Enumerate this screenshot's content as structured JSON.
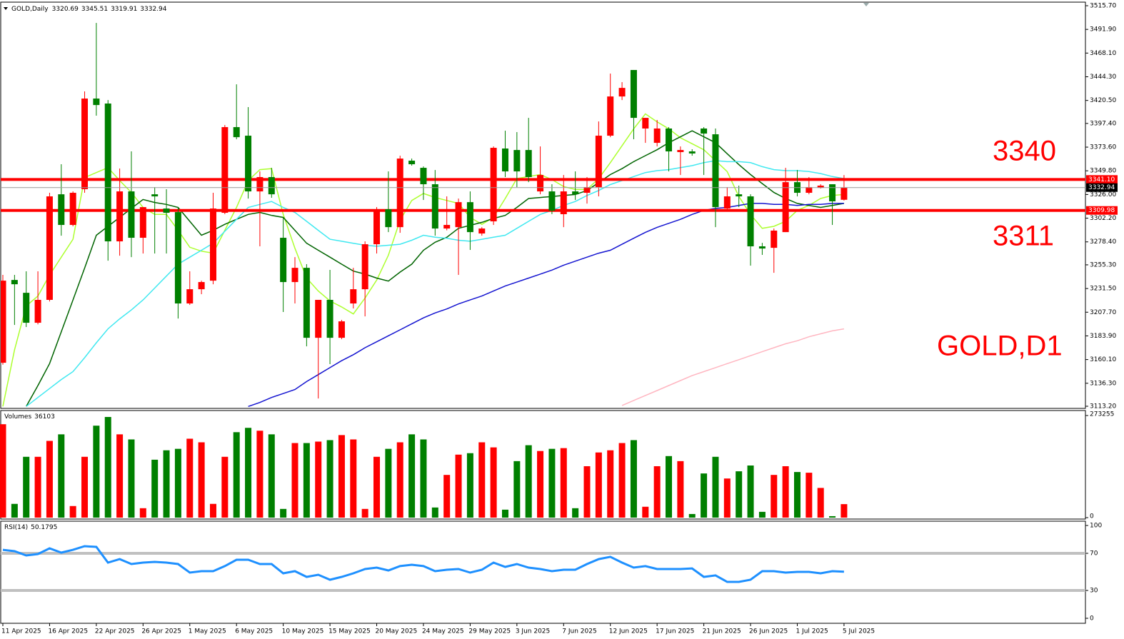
{
  "chart_data": [
    {
      "type": "candlestick",
      "title": "GOLD,Daily",
      "categories": [
        "11 Apr 2025",
        null,
        null,
        null,
        "16 Apr 2025",
        null,
        null,
        null,
        "22 Apr 2025",
        null,
        null,
        null,
        "26 Apr 2025",
        null,
        null,
        null,
        "1 May 2025",
        null,
        null,
        null,
        "6 May 2025",
        null,
        null,
        null,
        "10 May 2025",
        null,
        null,
        null,
        "15 May 2025",
        null,
        null,
        null,
        "20 May 2025",
        null,
        null,
        null,
        "24 May 2025",
        null,
        null,
        null,
        "29 May 2025",
        null,
        null,
        null,
        "3 Jun 2025",
        null,
        null,
        null,
        "7 Jun 2025",
        null,
        null,
        null,
        "12 Jun 2025",
        null,
        null,
        null,
        "17 Jun 2025",
        null,
        null,
        null,
        "21 Jun 2025",
        null,
        null,
        null,
        "26 Jun 2025",
        null,
        null,
        null,
        "1 Jul 2025",
        null,
        null,
        null,
        "5 Jul 2025"
      ],
      "ohlc": [
        [
          3156.9,
          3245.2,
          3155,
          3239.4
        ],
        [
          3240.1,
          3245.2,
          3194.9,
          3235.8
        ],
        [
          3227.2,
          3248.8,
          3192.8,
          3197.1
        ],
        [
          3197.1,
          3248.8,
          3195.5,
          3220.1
        ],
        [
          3220.1,
          3327.7,
          3218.5,
          3324.1
        ],
        [
          3326.2,
          3356.4,
          3284.6,
          3295.4
        ],
        [
          3295.4,
          3329.1,
          3294,
          3327.7
        ],
        [
          3331.3,
          3429.6,
          3327.7,
          3422.4
        ],
        [
          3422.4,
          3498.4,
          3405.2,
          3415.9
        ],
        [
          3417.4,
          3420.9,
          3259.5,
          3278.9
        ],
        [
          3278.9,
          3352.1,
          3264.5,
          3329.1
        ],
        [
          3329.1,
          3369.3,
          3263.1,
          3282.5
        ],
        [
          3282.5,
          3313.3,
          3266.7,
          3313.3
        ],
        [
          3326.2,
          3333.4,
          3266.7,
          3324.1
        ],
        [
          3311.9,
          3331.3,
          3266.7,
          3307.6
        ],
        [
          3308.3,
          3313.3,
          3201.4,
          3216.5
        ],
        [
          3216.5,
          3248.8,
          3215,
          3230.8
        ],
        [
          3230.8,
          3239.4,
          3225.8,
          3238
        ],
        [
          3239.4,
          3327.7,
          3235.8,
          3311.9
        ],
        [
          3307.6,
          3395.8,
          3306.2,
          3393.7
        ],
        [
          3393.7,
          3436.7,
          3381.5,
          3383.6
        ],
        [
          3385.1,
          3413.8,
          3321.9,
          3329.1
        ],
        [
          3329.1,
          3349.2,
          3273.9,
          3343.5
        ],
        [
          3343.5,
          3352.8,
          3322.7,
          3326.2
        ],
        [
          3282.5,
          3302.6,
          3207.9,
          3238
        ],
        [
          3238,
          3263.1,
          3216.5,
          3252.3
        ],
        [
          3252.3,
          3256,
          3173.4,
          3182
        ],
        [
          3182,
          3220.1,
          3121,
          3220.1
        ],
        [
          3220.1,
          3250.2,
          3155.5,
          3182
        ],
        [
          3182,
          3200,
          3180.6,
          3198.5
        ],
        [
          3216.5,
          3252.3,
          3211.5,
          3230.8
        ],
        [
          3230.8,
          3278.9,
          3203.5,
          3276
        ],
        [
          3276,
          3313.3,
          3266.7,
          3311.2
        ],
        [
          3311.2,
          3349.2,
          3288.2,
          3293.2
        ],
        [
          3293.2,
          3365,
          3287.5,
          3362.1
        ],
        [
          3360,
          3362.1,
          3355,
          3356.4
        ],
        [
          3352.8,
          3354.2,
          3320.5,
          3336.3
        ],
        [
          3336.3,
          3350.6,
          3284.6,
          3291.8
        ],
        [
          3291.8,
          3324.1,
          3290,
          3295.4
        ],
        [
          3293.2,
          3321.9,
          3245.2,
          3318.3
        ],
        [
          3318.3,
          3329.1,
          3270.3,
          3288.2
        ],
        [
          3286.8,
          3293.2,
          3284.6,
          3291.8
        ],
        [
          3299,
          3374.3,
          3295.4,
          3372.9
        ],
        [
          3372.2,
          3390.1,
          3343.5,
          3349.2
        ],
        [
          3370.7,
          3388.7,
          3333.4,
          3349.2
        ],
        [
          3370.7,
          3403,
          3338.4,
          3343.5
        ],
        [
          3329.1,
          3374.3,
          3326.2,
          3345.6
        ],
        [
          3329.1,
          3336.3,
          3306.2,
          3309.7
        ],
        [
          3306.2,
          3345.6,
          3293.2,
          3329.1
        ],
        [
          3329.1,
          3349.2,
          3320.5,
          3326.2
        ],
        [
          3327.7,
          3343.5,
          3316.9,
          3333.4
        ],
        [
          3333.4,
          3399.4,
          3324.1,
          3385.1
        ],
        [
          3385.1,
          3447.5,
          3383.6,
          3424.5
        ],
        [
          3424.5,
          3438.9,
          3420.9,
          3433.1
        ],
        [
          3451.1,
          3451.1,
          3381.5,
          3403
        ],
        [
          3392.3,
          3403,
          3377.9,
          3403
        ],
        [
          3377.9,
          3400.9,
          3374.3,
          3392.3
        ],
        [
          3392.3,
          3393.7,
          3349.2,
          3369.3
        ],
        [
          3368.6,
          3374.3,
          3345.6,
          3370.7
        ],
        [
          3369.3,
          3371.5,
          3365,
          3367.2
        ],
        [
          3392.3,
          3393.7,
          3345.6,
          3387.2
        ],
        [
          3386.5,
          3392.3,
          3293.2,
          3313.3
        ],
        [
          3311.9,
          3333.4,
          3311.2,
          3324.1
        ],
        [
          3326.2,
          3334.9,
          3313.3,
          3324.1
        ],
        [
          3324.1,
          3326.2,
          3254.5,
          3273.9
        ],
        [
          3273.9,
          3277.4,
          3265.3,
          3271.7
        ],
        [
          3272.4,
          3291.8,
          3247.3,
          3289.7
        ],
        [
          3288.2,
          3352.8,
          3288.2,
          3338.4
        ],
        [
          3338.4,
          3350.6,
          3324.1,
          3327.7
        ],
        [
          3327.7,
          3343.5,
          3326.2,
          3333.4
        ],
        [
          3332.7,
          3336.3,
          3332,
          3334.9
        ],
        [
          3336.3,
          3336.3,
          3295.4,
          3319.1
        ],
        [
          3320.69,
          3345.51,
          3319.91,
          3332.94
        ]
      ],
      "up_color": "#ff0000",
      "down_color": "#008000",
      "overlays": [
        {
          "color": "#adff2f",
          "values": [
            3113,
            3170,
            3214,
            3224,
            3245,
            3263,
            3281,
            3343,
            3348,
            3353,
            3340,
            3328,
            3313,
            3306,
            3306,
            3290,
            3273,
            3269,
            3267,
            3290,
            3313,
            3340,
            3351,
            3352,
            3306,
            3272,
            3242,
            3229,
            3219,
            3213,
            3206,
            3222,
            3240,
            3265,
            3300,
            3320,
            3327,
            3323,
            3320,
            3317,
            3303,
            3296,
            3303,
            3322,
            3342,
            3344,
            3346,
            3341,
            3334,
            3331,
            3331,
            3342,
            3358,
            3375,
            3392,
            3407,
            3399,
            3392,
            3383,
            3377,
            3371,
            3360,
            3349,
            3324,
            3306,
            3292,
            3294,
            3299,
            3310,
            3315,
            3322,
            3325,
            3326
          ]
        },
        {
          "color": "#006400",
          "values": [
            null,
            null,
            3113,
            3134,
            3156,
            3188,
            3220,
            3252,
            3285,
            3294,
            3303,
            3312,
            3321,
            3318,
            3316,
            3313,
            3299,
            3285,
            3290,
            3296,
            3301,
            3306,
            3308,
            3305,
            3303,
            3290,
            3277,
            3270,
            3263,
            3256,
            3249,
            3246,
            3242,
            3239,
            3248,
            3256,
            3270,
            3278,
            3283,
            3292,
            3295,
            3298,
            3302,
            3305,
            3313,
            3322,
            3323,
            3324,
            3325,
            3326,
            3330,
            3338,
            3346,
            3352,
            3359,
            3365,
            3371,
            3378,
            3384,
            3390,
            3384,
            3378,
            3367,
            3356,
            3346,
            3337,
            3328,
            3322,
            3317,
            3315,
            3313,
            3315,
            3317
          ]
        },
        {
          "color": "#40e8f0",
          "values": [
            null,
            null,
            3113,
            3122,
            3131,
            3140,
            3148,
            3162,
            3177,
            3191,
            3201,
            3210,
            3220,
            3232,
            3244,
            3256,
            3263,
            3270,
            3277,
            3289,
            3301,
            3313,
            3316,
            3319,
            3313,
            3308,
            3299,
            3290,
            3281,
            3279,
            3277,
            3275,
            3274,
            3275,
            3276,
            3280,
            3285,
            3283,
            3282,
            3280,
            3279,
            3281,
            3283,
            3285,
            3292,
            3299,
            3306,
            3310,
            3315,
            3319,
            3325,
            3330,
            3336,
            3340,
            3344,
            3348,
            3350,
            3351,
            3353,
            3355,
            3358,
            3360,
            3359,
            3359,
            3358,
            3354,
            3351,
            3350,
            3350,
            3349,
            3347,
            3344,
            3342
          ]
        },
        {
          "color": "#1414d0",
          "values": [
            null,
            null,
            null,
            null,
            null,
            null,
            null,
            null,
            null,
            null,
            null,
            null,
            null,
            null,
            null,
            null,
            null,
            null,
            null,
            null,
            null,
            3113,
            3117,
            3122,
            3126,
            3130,
            3138,
            3145,
            3152,
            3159,
            3165,
            3172,
            3178,
            3184,
            3190,
            3196,
            3202,
            3207,
            3211,
            3216,
            3220,
            3224,
            3229,
            3234,
            3238,
            3242,
            3246,
            3250,
            3255,
            3259,
            3263,
            3267,
            3270,
            3276,
            3282,
            3288,
            3293,
            3297,
            3301,
            3306,
            3310,
            3312,
            3313,
            3315,
            3317,
            3317,
            3316,
            3316,
            3315,
            3316,
            3316,
            3317,
            3317
          ]
        },
        {
          "color": "#ffb6c1",
          "values": [
            null,
            null,
            null,
            null,
            null,
            null,
            null,
            null,
            null,
            null,
            null,
            null,
            null,
            null,
            null,
            null,
            null,
            null,
            null,
            null,
            null,
            null,
            null,
            null,
            null,
            null,
            null,
            null,
            null,
            null,
            null,
            null,
            null,
            null,
            null,
            null,
            null,
            null,
            null,
            null,
            null,
            null,
            null,
            null,
            null,
            null,
            null,
            null,
            null,
            null,
            null,
            null,
            null,
            3114,
            3119,
            3124,
            3129,
            3134,
            3139,
            3144,
            3148,
            3152,
            3156,
            3160,
            3164,
            3168,
            3172,
            3176,
            3179,
            3183,
            3186,
            3189,
            3191
          ]
        }
      ],
      "levels": [
        {
          "value": 3341.1,
          "label": "3341.10",
          "color": "#ff0000"
        },
        {
          "value": 3309.98,
          "label": "3309.98",
          "color": "#ff0000"
        }
      ],
      "annotations": [
        "3340",
        "3311",
        "GOLD,D1"
      ],
      "annotation_color": "#ff0000",
      "ylim": [
        3113.2,
        3515.7
      ],
      "yticks": [
        {
          "value": 3113.2,
          "label": "3113.20"
        },
        {
          "value": 3136.3,
          "label": "3136.30"
        },
        {
          "value": 3160.1,
          "label": "3160.10"
        },
        {
          "value": 3183.9,
          "label": "3183.90"
        },
        {
          "value": 3207.7,
          "label": "3207.70"
        },
        {
          "value": 3231.5,
          "label": "3231.50"
        },
        {
          "value": 3255.3,
          "label": "3255.30"
        },
        {
          "value": 3278.4,
          "label": "3278.40"
        },
        {
          "value": 3302.2,
          "label": "3302.20"
        },
        {
          "value": 3326,
          "label": "3326.00"
        },
        {
          "value": 3349.8,
          "label": "3349.80"
        },
        {
          "value": 3373.6,
          "label": "3373.60"
        },
        {
          "value": 3397.4,
          "label": "3397.40"
        },
        {
          "value": 3420.5,
          "label": "3420.50"
        },
        {
          "value": 3444.3,
          "label": "3444.30"
        },
        {
          "value": 3468.1,
          "label": "3468.10"
        },
        {
          "value": 3491.9,
          "label": "3491.90"
        },
        {
          "value": 3515.7,
          "label": "3515.70"
        }
      ]
    },
    {
      "type": "bar",
      "title": "Volumes",
      "values": [
        250000,
        36800,
        162800,
        162800,
        205400,
        222900,
        31000,
        162800,
        246100,
        269400,
        222900,
        209300,
        25200,
        155000,
        180200,
        184100,
        211200,
        201600,
        36800,
        162800,
        228700,
        240300,
        232600,
        222900,
        23300,
        199600,
        199600,
        203500,
        207400,
        220900,
        209300,
        23300,
        162800,
        184100,
        201600,
        222900,
        209300,
        27100,
        114300,
        168600,
        172500,
        201600,
        188000,
        21300,
        151200,
        193800,
        178300,
        184100,
        186000,
        25200,
        137600,
        174400,
        180200,
        199600,
        207400,
        29100,
        137600,
        164700,
        151200,
        9700,
        118200,
        162800,
        104700,
        124000,
        139500,
        15500,
        114300,
        137600,
        122100,
        120200,
        79500,
        3900,
        36103
      ],
      "ylim": [
        0,
        273255
      ],
      "yticks": [
        0,
        273255
      ]
    },
    {
      "type": "line",
      "title": "RSI(14)",
      "color": "#1e90ff",
      "values": [
        73.8,
        72.3,
        67.7,
        69.2,
        75.4,
        70.8,
        73.8,
        77.7,
        76.9,
        60,
        63.8,
        58.5,
        60,
        60.8,
        60,
        58.5,
        49.2,
        50.8,
        50.8,
        56.2,
        63.1,
        63.1,
        58.5,
        58.5,
        48.5,
        50.8,
        44.6,
        46.9,
        41.5,
        44.6,
        48.5,
        53.1,
        54.6,
        51.5,
        56.2,
        57.7,
        56.2,
        50.8,
        52.3,
        53.1,
        49.2,
        52.3,
        60,
        55.4,
        58.5,
        54.6,
        53.1,
        50.8,
        52.3,
        52.3,
        58.5,
        63.8,
        66.2,
        60,
        54.6,
        56.2,
        53.1,
        53.1,
        53.1,
        53.8,
        44.6,
        46.2,
        39.2,
        39.2,
        41.5,
        50.8,
        50.8,
        49.2,
        50,
        50,
        48.5,
        50.8,
        50.1795
      ],
      "levels": [
        70,
        30
      ],
      "level_color": "#c0c0c0",
      "ylim": [
        0,
        100
      ],
      "yticks": [
        0,
        30,
        70,
        100
      ]
    }
  ]
}
